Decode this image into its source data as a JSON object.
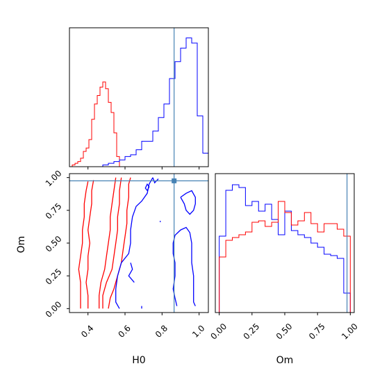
{
  "chart_data": {
    "type": "corner",
    "parameters": [
      "H0",
      "Om"
    ],
    "truth": {
      "H0": 0.865,
      "Om": 0.975
    },
    "colors": {
      "red_series": "#ff0000",
      "blue_series": "#0000ff",
      "truth": "#4682b4"
    },
    "xticks_H0": [
      "0.4",
      "0.6",
      "0.8",
      "1.0"
    ],
    "yticks_Om": [
      "0.00",
      "0.25",
      "0.50",
      "0.75",
      "1.00"
    ],
    "xticks_Om": [
      "0.00",
      "0.25",
      "0.50",
      "0.75",
      "1.00"
    ],
    "xlabel_left": "H0",
    "ylabel_left": "Om",
    "xlabel_right": "Om",
    "hist_H0": {
      "red": {
        "edges": [
          0.3,
          0.315,
          0.33,
          0.345,
          0.36,
          0.375,
          0.39,
          0.405,
          0.42,
          0.435,
          0.45,
          0.465,
          0.48,
          0.495,
          0.51,
          0.525,
          0.54,
          0.555,
          0.57,
          0.585,
          0.6
        ],
        "values": [
          0.0,
          0.01,
          0.02,
          0.03,
          0.05,
          0.09,
          0.11,
          0.16,
          0.28,
          0.37,
          0.42,
          0.47,
          0.5,
          0.46,
          0.38,
          0.32,
          0.2,
          0.06,
          0.0,
          0.0
        ]
      },
      "blue": {
        "edges": [
          0.45,
          0.48,
          0.51,
          0.54,
          0.57,
          0.6,
          0.63,
          0.66,
          0.69,
          0.72,
          0.75,
          0.78,
          0.81,
          0.84,
          0.87,
          0.9,
          0.93,
          0.96,
          0.99,
          1.02,
          1.05
        ],
        "values": [
          0.0,
          0.01,
          0.02,
          0.03,
          0.04,
          0.06,
          0.07,
          0.1,
          0.15,
          0.15,
          0.21,
          0.29,
          0.37,
          0.52,
          0.62,
          0.7,
          0.76,
          0.73,
          0.3,
          0.08
        ]
      }
    },
    "hist_Om": {
      "blue": {
        "edges": [
          0.0,
          0.05,
          0.1,
          0.15,
          0.2,
          0.25,
          0.3,
          0.35,
          0.4,
          0.45,
          0.5,
          0.55,
          0.6,
          0.65,
          0.7,
          0.75,
          0.8,
          0.85,
          0.9,
          0.95,
          1.0
        ],
        "values": [
          0.55,
          0.88,
          0.92,
          0.9,
          0.77,
          0.8,
          0.73,
          0.78,
          0.67,
          0.56,
          0.73,
          0.59,
          0.56,
          0.54,
          0.5,
          0.47,
          0.42,
          0.41,
          0.39,
          0.14
        ]
      },
      "red": {
        "edges": [
          0.0,
          0.05,
          0.1,
          0.15,
          0.2,
          0.25,
          0.3,
          0.35,
          0.4,
          0.45,
          0.5,
          0.55,
          0.6,
          0.65,
          0.7,
          0.75,
          0.8,
          0.85,
          0.9,
          0.95,
          1.0
        ],
        "values": [
          0.4,
          0.52,
          0.54,
          0.56,
          0.58,
          0.65,
          0.66,
          0.62,
          0.65,
          0.8,
          0.72,
          0.63,
          0.66,
          0.72,
          0.64,
          0.58,
          0.64,
          0.64,
          0.6,
          0.55
        ]
      }
    },
    "contours": {
      "red": [
        [
          [
            0.36,
            0.0
          ],
          [
            0.36,
            0.1
          ],
          [
            0.36,
            0.2
          ],
          [
            0.35,
            0.3
          ],
          [
            0.36,
            0.4
          ],
          [
            0.37,
            0.5
          ],
          [
            0.37,
            0.6
          ],
          [
            0.38,
            0.7
          ],
          [
            0.38,
            0.8
          ],
          [
            0.39,
            0.9
          ],
          [
            0.4,
            0.97
          ]
        ],
        [
          [
            0.4,
            0.0
          ],
          [
            0.4,
            0.1
          ],
          [
            0.39,
            0.2
          ],
          [
            0.4,
            0.3
          ],
          [
            0.4,
            0.4
          ],
          [
            0.41,
            0.5
          ],
          [
            0.4,
            0.6
          ],
          [
            0.41,
            0.7
          ],
          [
            0.42,
            0.8
          ],
          [
            0.42,
            0.9
          ],
          [
            0.43,
            0.98
          ]
        ],
        [
          [
            0.46,
            0.0
          ],
          [
            0.46,
            0.1
          ],
          [
            0.47,
            0.2
          ],
          [
            0.49,
            0.3
          ],
          [
            0.5,
            0.4
          ],
          [
            0.51,
            0.5
          ],
          [
            0.52,
            0.6
          ],
          [
            0.52,
            0.7
          ],
          [
            0.53,
            0.8
          ],
          [
            0.54,
            0.9
          ],
          [
            0.55,
            1.0
          ]
        ],
        [
          [
            0.48,
            0.0
          ],
          [
            0.48,
            0.1
          ],
          [
            0.5,
            0.2
          ],
          [
            0.53,
            0.3
          ],
          [
            0.54,
            0.4
          ],
          [
            0.55,
            0.5
          ],
          [
            0.56,
            0.6
          ],
          [
            0.56,
            0.7
          ],
          [
            0.57,
            0.8
          ],
          [
            0.57,
            0.9
          ],
          [
            0.58,
            1.0
          ]
        ],
        [
          [
            0.51,
            0.0
          ],
          [
            0.52,
            0.08
          ],
          [
            0.54,
            0.15
          ],
          [
            0.56,
            0.25
          ],
          [
            0.58,
            0.35
          ],
          [
            0.59,
            0.45
          ],
          [
            0.6,
            0.55
          ],
          [
            0.61,
            0.65
          ],
          [
            0.61,
            0.75
          ],
          [
            0.62,
            0.85
          ],
          [
            0.62,
            0.95
          ],
          [
            0.63,
            1.0
          ]
        ]
      ],
      "blue": [
        [
          [
            0.57,
            0.0
          ],
          [
            0.55,
            0.05
          ],
          [
            0.55,
            0.15
          ],
          [
            0.56,
            0.25
          ],
          [
            0.58,
            0.35
          ],
          [
            0.62,
            0.42
          ],
          [
            0.63,
            0.5
          ],
          [
            0.63,
            0.6
          ],
          [
            0.64,
            0.7
          ],
          [
            0.66,
            0.78
          ],
          [
            0.69,
            0.82
          ],
          [
            0.72,
            0.88
          ],
          [
            0.73,
            0.95
          ],
          [
            0.75,
            1.0
          ]
        ],
        [
          [
            0.65,
            0.2
          ],
          [
            0.62,
            0.25
          ],
          [
            0.64,
            0.3
          ],
          [
            0.63,
            0.35
          ]
        ],
        [
          [
            0.69,
            0.02
          ],
          [
            0.69,
            0.0
          ]
        ],
        [
          [
            0.88,
            0.02
          ],
          [
            0.87,
            0.08
          ],
          [
            0.86,
            0.15
          ],
          [
            0.87,
            0.25
          ],
          [
            0.87,
            0.35
          ],
          [
            0.86,
            0.42
          ],
          [
            0.86,
            0.5
          ],
          [
            0.87,
            0.56
          ],
          [
            0.9,
            0.6
          ],
          [
            0.93,
            0.62
          ],
          [
            0.95,
            0.58
          ],
          [
            0.96,
            0.5
          ],
          [
            0.96,
            0.42
          ],
          [
            0.96,
            0.35
          ],
          [
            0.97,
            0.25
          ],
          [
            0.97,
            0.15
          ],
          [
            0.97,
            0.05
          ],
          [
            0.98,
            0.02
          ]
        ],
        [
          [
            0.9,
            0.85
          ],
          [
            0.92,
            0.8
          ],
          [
            0.93,
            0.75
          ],
          [
            0.95,
            0.72
          ],
          [
            0.97,
            0.75
          ],
          [
            0.98,
            0.8
          ],
          [
            0.98,
            0.85
          ],
          [
            0.96,
            0.9
          ],
          [
            0.93,
            0.88
          ],
          [
            0.9,
            0.85
          ]
        ],
        [
          [
            0.79,
            0.66
          ],
          [
            0.79,
            0.67
          ]
        ],
        [
          [
            0.72,
            0.9
          ],
          [
            0.73,
            0.93
          ],
          [
            0.72,
            0.95
          ],
          [
            0.71,
            0.92
          ],
          [
            0.72,
            0.9
          ]
        ],
        [
          [
            0.75,
            1.0
          ],
          [
            0.76,
            0.96
          ],
          [
            0.78,
            0.99
          ]
        ]
      ]
    }
  }
}
